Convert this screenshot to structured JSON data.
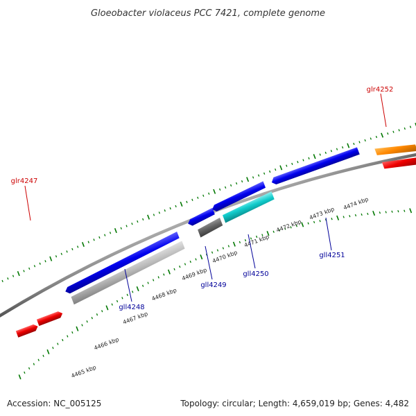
{
  "title": "Gloeobacter violaceus PCC 7421, complete genome",
  "accession": {
    "label": "Accession:",
    "value": "NC_005125"
  },
  "stats": {
    "topology_label": "Topology:",
    "topology": "circular",
    "length_label": "Length:",
    "length": "4,659,019 bp",
    "genes_label": "Genes:",
    "genes": "4,482"
  },
  "scale": {
    "unit": "kbp",
    "ticks": [
      {
        "label": "4465 kbp",
        "kbp": 4465
      },
      {
        "label": "4466 kbp",
        "kbp": 4466
      },
      {
        "label": "4467 kbp",
        "kbp": 4467
      },
      {
        "label": "4468 kbp",
        "kbp": 4468
      },
      {
        "label": "4469 kbp",
        "kbp": 4469
      },
      {
        "label": "4470 kbp",
        "kbp": 4470
      },
      {
        "label": "4471 kbp",
        "kbp": 4471
      },
      {
        "label": "4472 kbp",
        "kbp": 4472
      },
      {
        "label": "4473 kbp",
        "kbp": 4473
      },
      {
        "label": "4474 kbp",
        "kbp": 4474
      }
    ]
  },
  "colors": {
    "forward_label": "#cc0000",
    "reverse_label": "#000099",
    "backbone": "#888888",
    "tick_marks": "#007700",
    "red": "#ee0000",
    "orange": "#ff8800",
    "cyan": "#11cccc",
    "blue": "#0000ee",
    "light_gray": "#bbbbbb",
    "dark_gray": "#666666"
  },
  "labels": [
    {
      "id": "glr4247",
      "text": "glr4247",
      "strand": "forward"
    },
    {
      "id": "glr4252",
      "text": "glr4252",
      "strand": "forward"
    },
    {
      "id": "gll4248",
      "text": "gll4248",
      "strand": "reverse"
    },
    {
      "id": "gll4249",
      "text": "gll4249",
      "strand": "reverse"
    },
    {
      "id": "gll4250",
      "text": "gll4250",
      "strand": "reverse"
    },
    {
      "id": "gll4251",
      "text": "gll4251",
      "strand": "reverse"
    }
  ]
}
